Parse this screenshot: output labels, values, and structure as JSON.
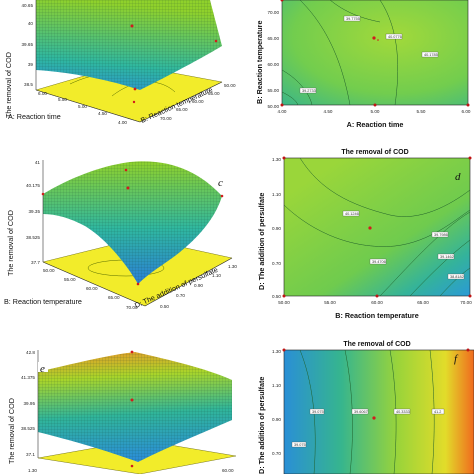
{
  "colors": {
    "surface_low": "#2b8fd6",
    "surface_mid": "#2fb7a0",
    "surface_high": "#8fd12b",
    "floor": "#f2ec2a",
    "contour_field": "#7ed348",
    "hot": "#f06a1e",
    "point": "#d11c1c"
  },
  "chart_data": [
    {
      "id": "a",
      "type": "surface3d",
      "zlabel": "The removal of COD",
      "xlabel": "A: Reaction time",
      "ylabel": "B: Reaction temperature",
      "z_ticks": [
        "40.65",
        "40",
        "39.65",
        "39",
        "38.5"
      ],
      "x_ticks": [
        "6.00",
        "5.50",
        "5.00",
        "4.50",
        "4.00"
      ],
      "y_ticks": [
        "50.00",
        "55.00",
        "60.00",
        "65.00",
        "70.00"
      ]
    },
    {
      "id": "b",
      "type": "contour",
      "title": "",
      "xlabel": "A: Reaction time",
      "ylabel": "B: Reaction temperature",
      "x_ticks": [
        "4.00",
        "4.50",
        "5.00",
        "5.50",
        "6.00"
      ],
      "y_ticks": [
        "70.00",
        "65.00",
        "60.00",
        "55.00",
        "50.00"
      ],
      "contour_labels": [
        "39.7755",
        "40.0776",
        "40.1785",
        "39.2733"
      ]
    },
    {
      "id": "c",
      "type": "surface3d",
      "zlabel": "The removal of COD",
      "xlabel": "B: Reaction temperature",
      "ylabel": "D: The addition of persulfate",
      "z_ticks": [
        "41",
        "40.175",
        "39.35",
        "38.525",
        "37.7"
      ],
      "x_ticks": [
        "50.00",
        "55.00",
        "60.00",
        "65.00",
        "70.00"
      ],
      "y_ticks": [
        "1.30",
        "1.10",
        "0.90",
        "0.70",
        "0.50"
      ]
    },
    {
      "id": "d",
      "type": "contour",
      "title": "The removal of COD",
      "xlabel": "B: Reaction temperature",
      "ylabel": "D: The addition of persulfate",
      "x_ticks": [
        "50.00",
        "55.00",
        "60.00",
        "65.00",
        "70.00"
      ],
      "y_ticks": [
        "1.30",
        "1.10",
        "0.90",
        "0.70",
        "0.50"
      ],
      "contour_labels": [
        "40.1246",
        "39.7986",
        "39.4706",
        "39.1462",
        "38.8182"
      ]
    },
    {
      "id": "e",
      "type": "surface3d",
      "zlabel": "The removal of COD",
      "xlabel": "",
      "ylabel": "",
      "z_ticks": [
        "42.8",
        "41.375",
        "39.95",
        "38.525",
        "37.1"
      ],
      "x_ticks": [
        "1.30"
      ],
      "y_ticks": [
        "60.00"
      ]
    },
    {
      "id": "f",
      "type": "contour",
      "title": "The removal of COD",
      "xlabel": "",
      "ylabel": "D: The addition of persulfate",
      "x_ticks": [],
      "y_ticks": [
        "1.30",
        "1.10",
        "0.90",
        "0.70"
      ],
      "contour_labels": [
        "39.075",
        "39.6067",
        "40.3333",
        "41.2"
      ]
    }
  ]
}
